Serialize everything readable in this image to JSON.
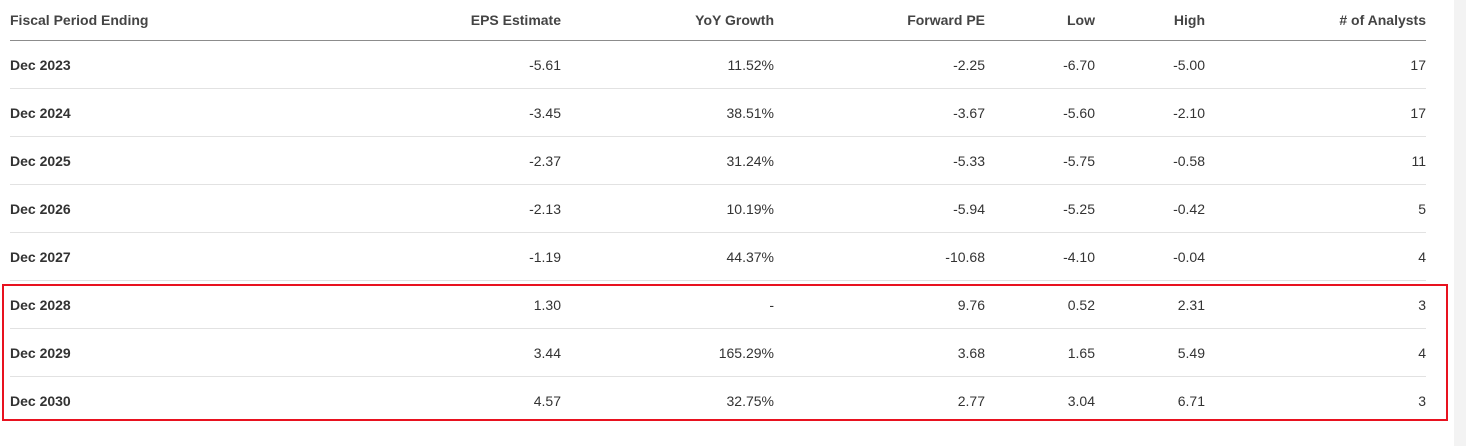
{
  "table": {
    "headers": [
      "Fiscal Period Ending",
      "EPS Estimate",
      "YoY Growth",
      "Forward PE",
      "Low",
      "High",
      "# of Analysts"
    ],
    "rows": [
      [
        "Dec 2023",
        "-5.61",
        "11.52%",
        "-2.25",
        "-6.70",
        "-5.00",
        "17"
      ],
      [
        "Dec 2024",
        "-3.45",
        "38.51%",
        "-3.67",
        "-5.60",
        "-2.10",
        "17"
      ],
      [
        "Dec 2025",
        "-2.37",
        "31.24%",
        "-5.33",
        "-5.75",
        "-0.58",
        "11"
      ],
      [
        "Dec 2026",
        "-2.13",
        "10.19%",
        "-5.94",
        "-5.25",
        "-0.42",
        "5"
      ],
      [
        "Dec 2027",
        "-1.19",
        "44.37%",
        "-10.68",
        "-4.10",
        "-0.04",
        "4"
      ],
      [
        "Dec 2028",
        "1.30",
        "-",
        "9.76",
        "0.52",
        "2.31",
        "3"
      ],
      [
        "Dec 2029",
        "3.44",
        "165.29%",
        "3.68",
        "1.65",
        "5.49",
        "4"
      ],
      [
        "Dec 2030",
        "4.57",
        "32.75%",
        "2.77",
        "3.04",
        "6.71",
        "3"
      ]
    ]
  },
  "highlight": {
    "color": "#e8121f",
    "rows": [
      "Dec 2028",
      "Dec 2029",
      "Dec 2030"
    ]
  },
  "colors": {
    "header_text": "#444444",
    "cell_text": "#333333",
    "header_rule": "#8c8c8c",
    "row_rule": "#e2e2e2"
  }
}
